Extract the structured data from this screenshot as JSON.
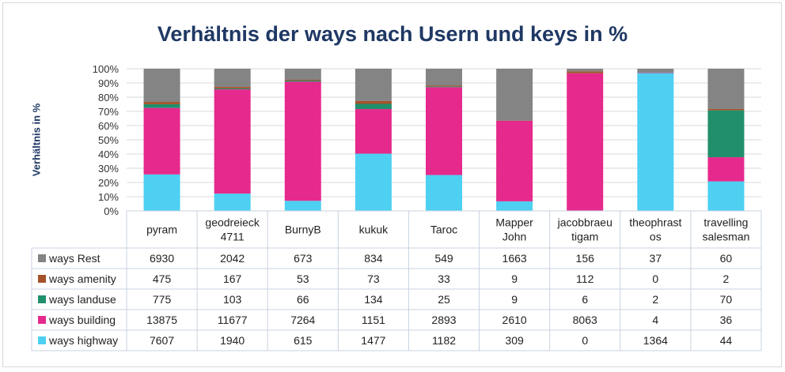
{
  "chart_data": {
    "type": "stacked-bar-100",
    "title": "Verhältnis der ways nach Usern und keys in %",
    "ylabel": "Verhältnis in %",
    "ylim": [
      0,
      100
    ],
    "yticks": [
      "0%",
      "10%",
      "20%",
      "30%",
      "40%",
      "50%",
      "60%",
      "70%",
      "80%",
      "90%",
      "100%"
    ],
    "grid": true,
    "categories": [
      [
        "pyram"
      ],
      [
        "geodreieck",
        "4711"
      ],
      [
        "BurnyB"
      ],
      [
        "kukuk"
      ],
      [
        "Taroc"
      ],
      [
        "Mapper",
        "John"
      ],
      [
        "jacobbraeu",
        "tigam"
      ],
      [
        "theophrast",
        "os"
      ],
      [
        "travelling",
        "salesman"
      ]
    ],
    "series": [
      {
        "name": "ways highway",
        "color": "#4dd0f2",
        "values": [
          7607,
          1940,
          615,
          1477,
          1182,
          309,
          0,
          1364,
          44
        ]
      },
      {
        "name": "ways building",
        "color": "#e6298c",
        "values": [
          13875,
          11677,
          7264,
          1151,
          2893,
          2610,
          8063,
          4,
          36
        ]
      },
      {
        "name": "ways landuse",
        "color": "#218f6c",
        "values": [
          775,
          103,
          66,
          134,
          25,
          9,
          6,
          2,
          70
        ]
      },
      {
        "name": "ways amenity",
        "color": "#a5522a",
        "values": [
          475,
          167,
          53,
          73,
          33,
          9,
          112,
          0,
          2
        ]
      },
      {
        "name": "ways Rest",
        "color": "#848484",
        "values": [
          6930,
          2042,
          673,
          834,
          549,
          1663,
          156,
          37,
          60
        ]
      }
    ]
  }
}
